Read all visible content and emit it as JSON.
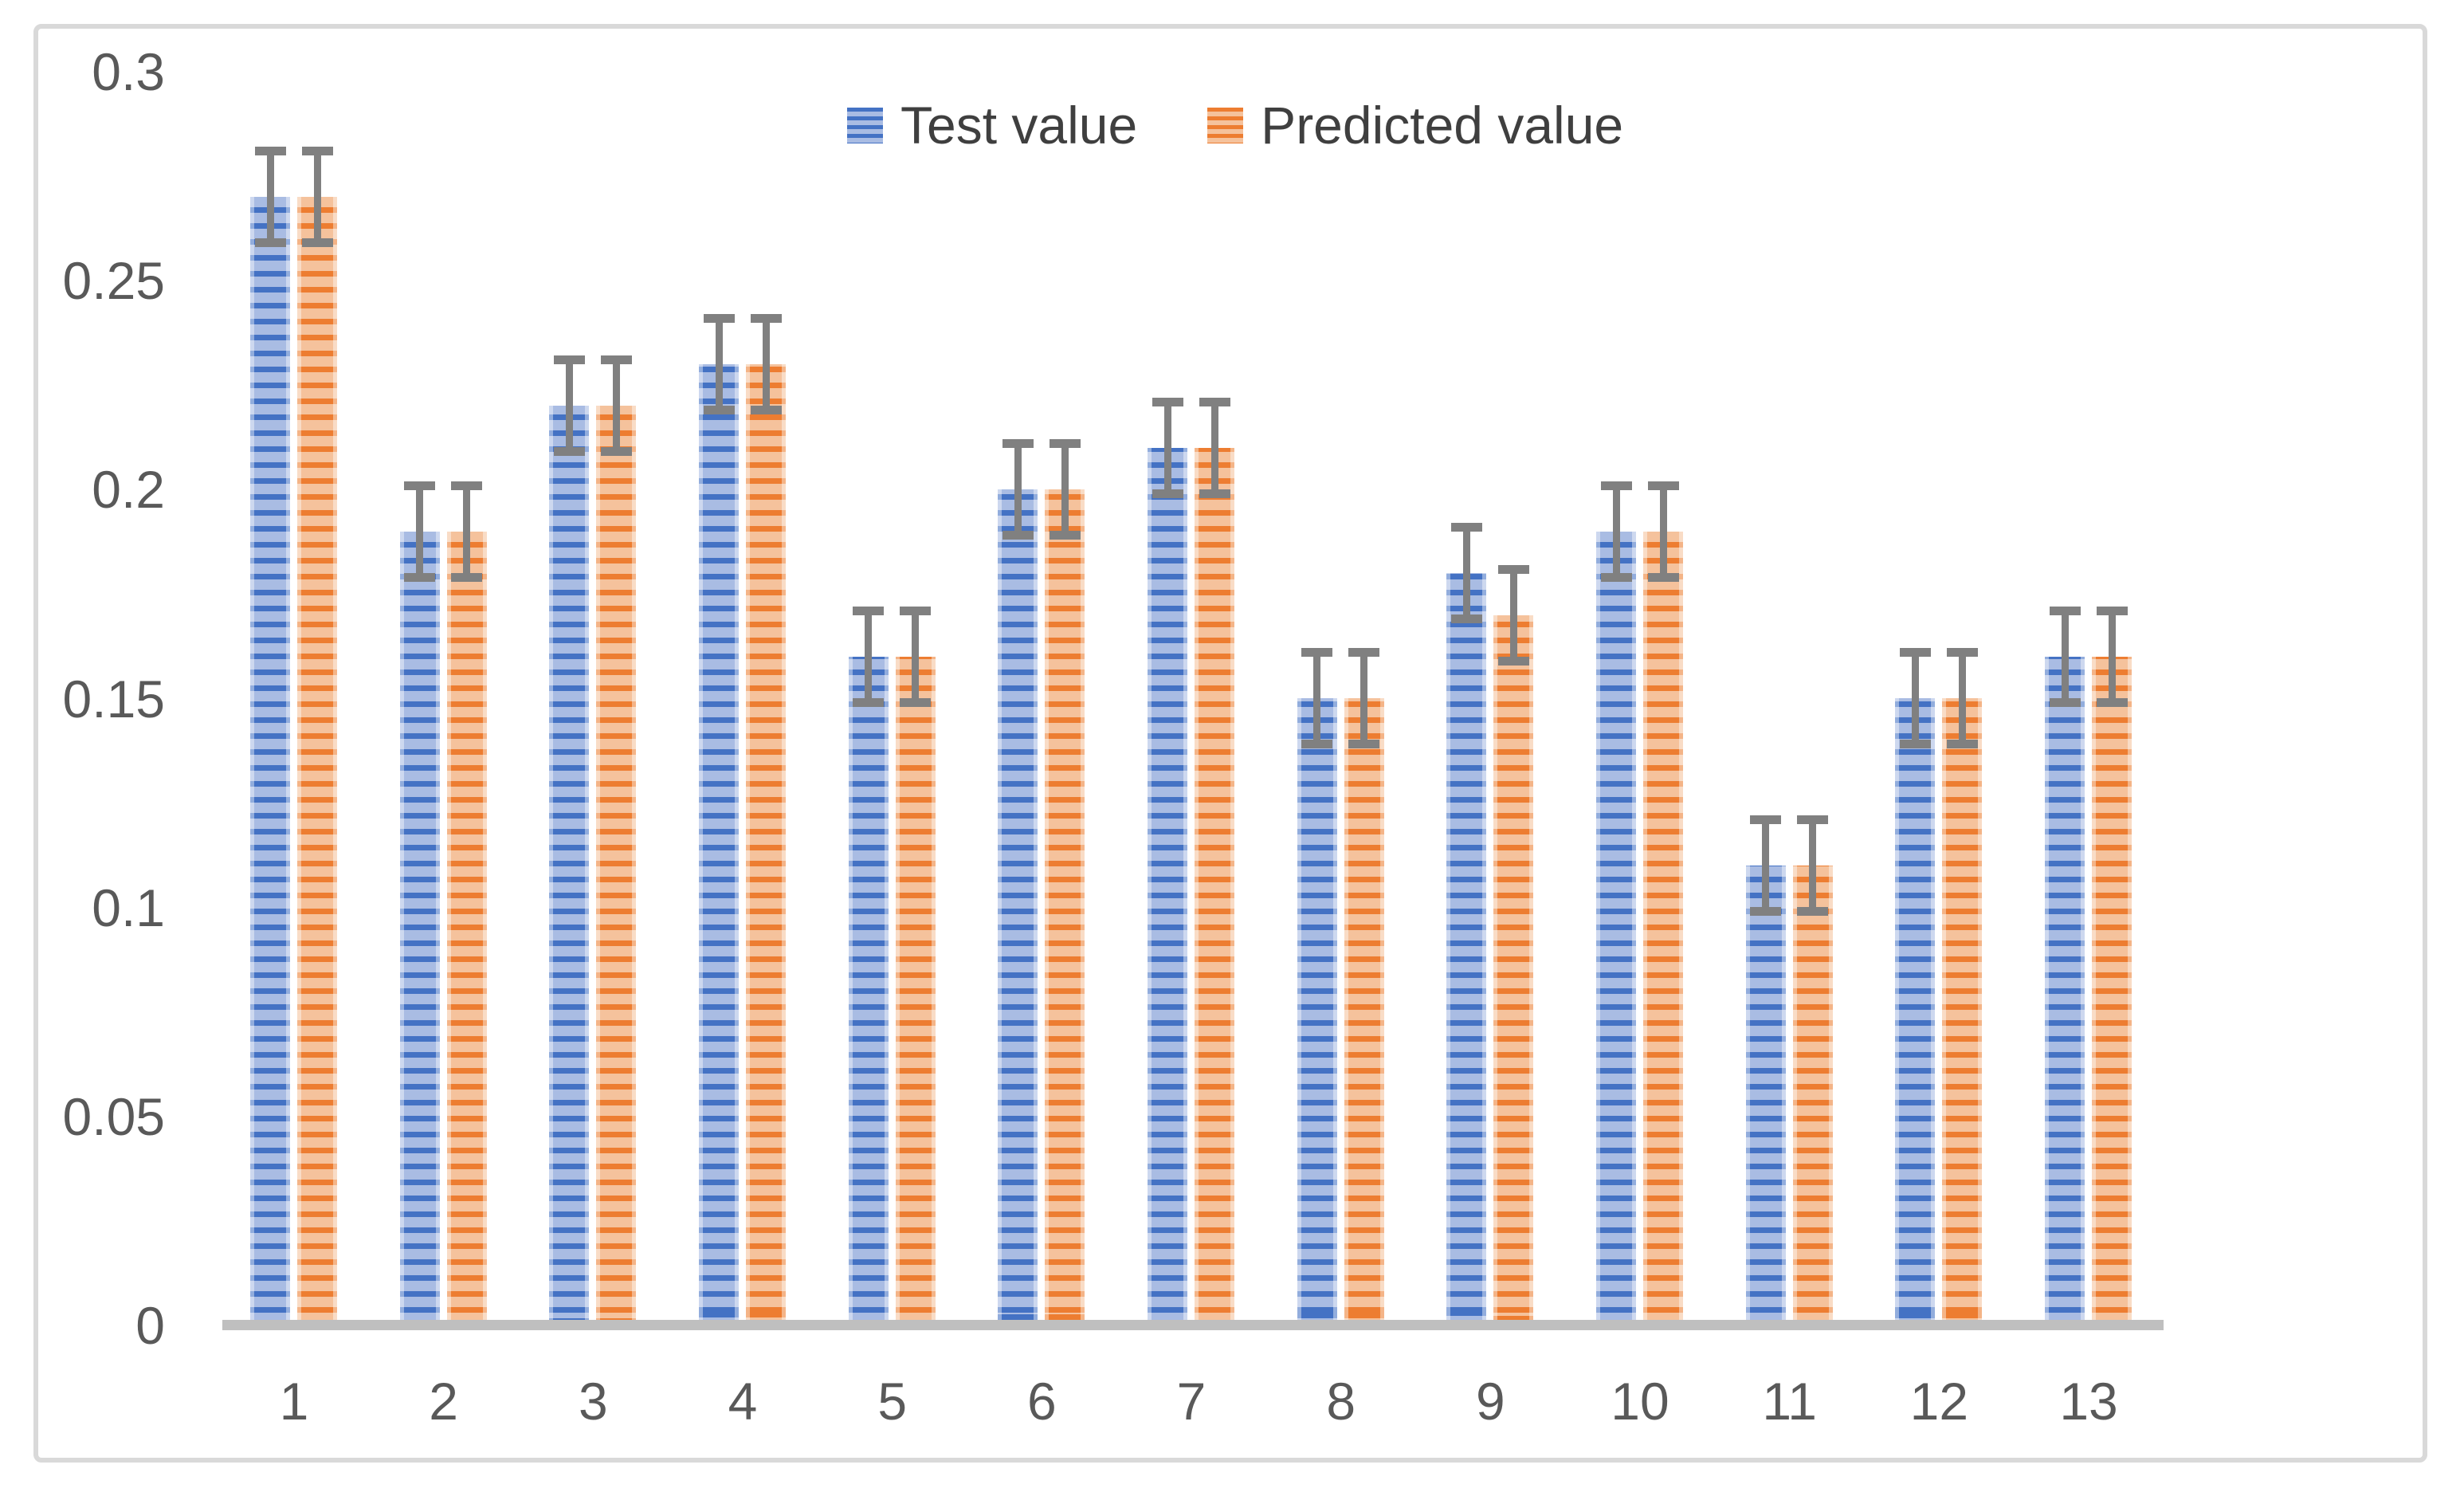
{
  "chart_data": {
    "type": "bar",
    "title": "",
    "xlabel": "",
    "ylabel": "",
    "categories": [
      "1",
      "2",
      "3",
      "4",
      "5",
      "6",
      "7",
      "8",
      "9",
      "10",
      "11",
      "12",
      "13"
    ],
    "series": [
      {
        "name": "Test value",
        "values": [
          0.27,
          0.19,
          0.22,
          0.23,
          0.16,
          0.2,
          0.21,
          0.15,
          0.18,
          0.19,
          0.11,
          0.15,
          0.16
        ],
        "color": "#4472C4",
        "color_light": "#A9BCE3"
      },
      {
        "name": "Predicted value",
        "values": [
          0.27,
          0.19,
          0.22,
          0.23,
          0.16,
          0.2,
          0.21,
          0.15,
          0.17,
          0.19,
          0.11,
          0.15,
          0.16
        ],
        "color": "#ED7D31",
        "color_light": "#F5C29C"
      }
    ],
    "error_bar_plus_minus": 0.011,
    "error_bar_color": "#808080",
    "y_ticks": [
      0,
      0.05,
      0.1,
      0.15,
      0.2,
      0.25,
      0.3
    ],
    "y_tick_labels": [
      "0",
      "0.05",
      "0.1",
      "0.15",
      "0.2",
      "0.25",
      "0.3"
    ],
    "ylim": [
      0,
      0.3
    ],
    "grid": false,
    "legend_position": "top-center",
    "bar_pattern": "horizontal-stripes",
    "axis_line_color": "#BFBFBF",
    "tick_label_color": "#595959",
    "legend_text_color": "#3F3F3F",
    "frame_border_color": "#D9D9D9"
  }
}
